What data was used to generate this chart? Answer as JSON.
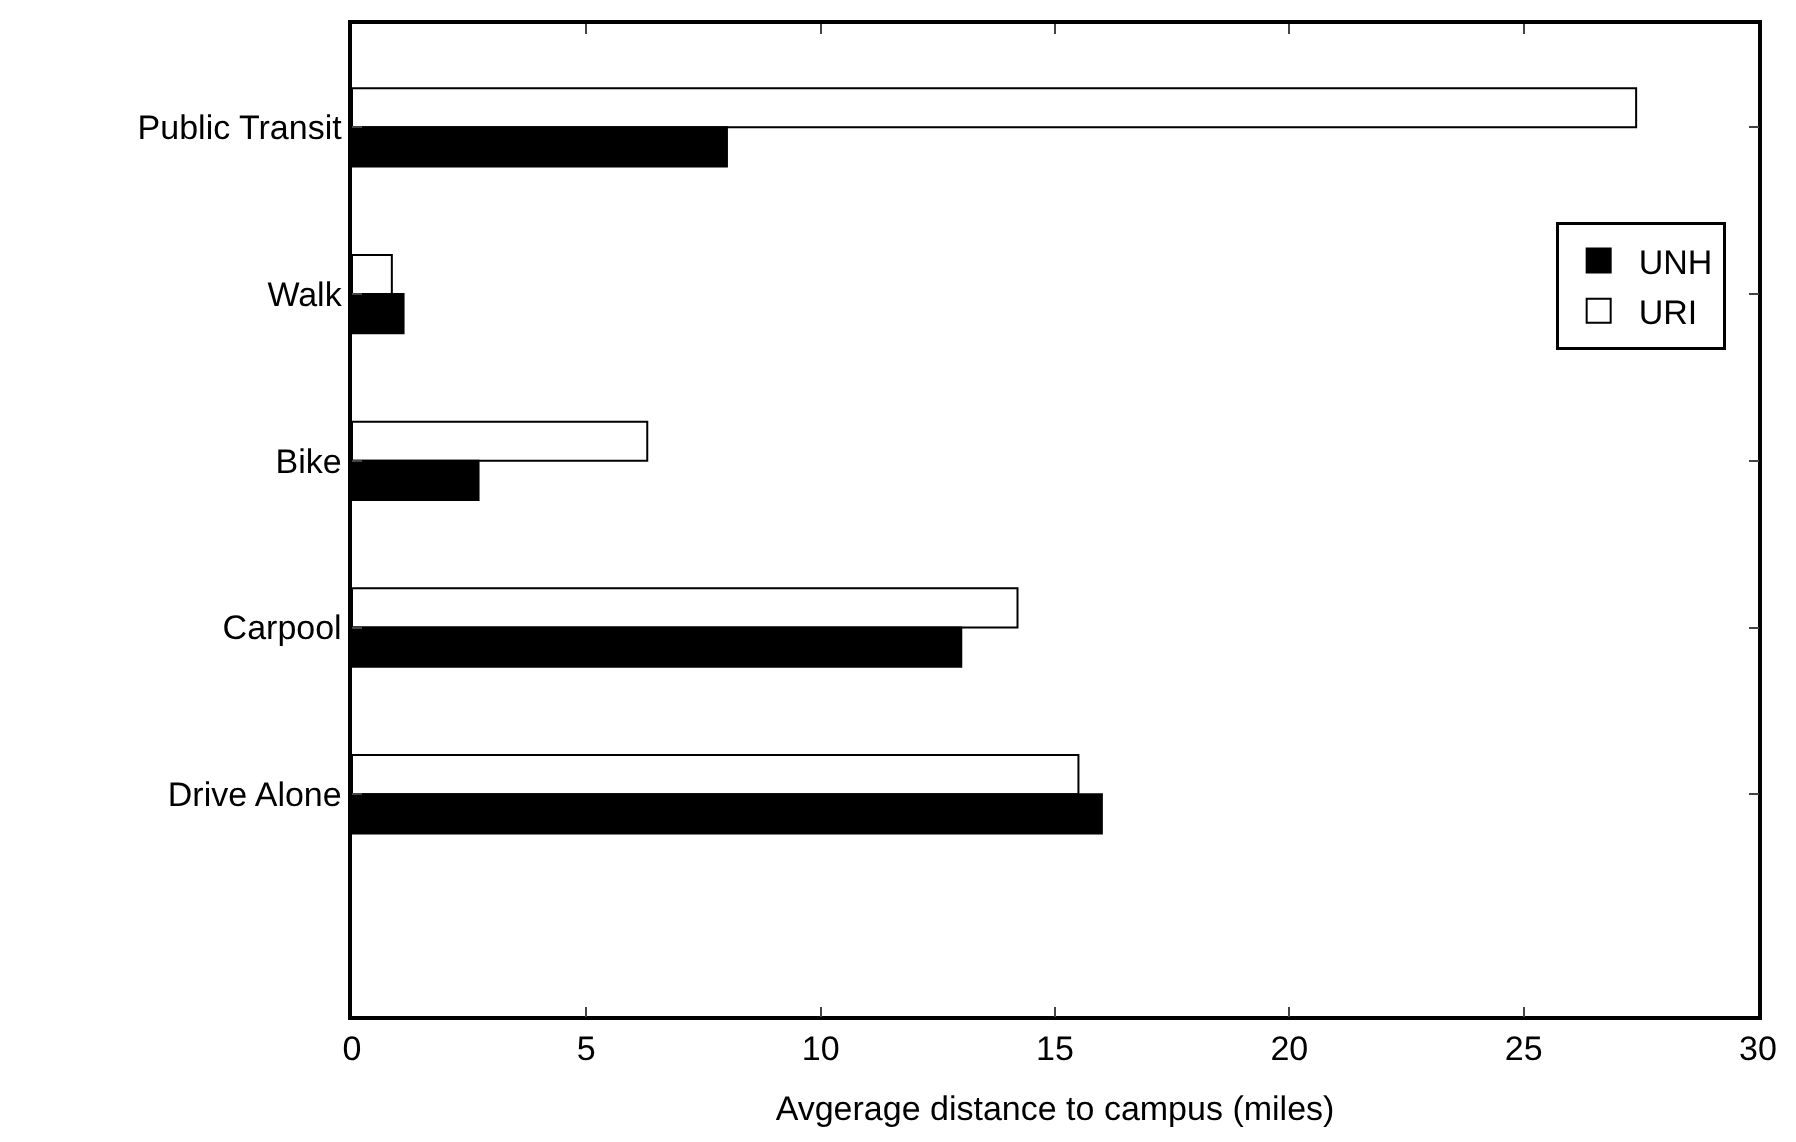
{
  "chart_data": {
    "type": "bar",
    "orientation": "horizontal",
    "xlabel": "Avgerage distance to campus (miles)",
    "categories": [
      "Public Transit",
      "Walk",
      "Bike",
      "Carpool",
      "Drive Alone"
    ],
    "series": [
      {
        "name": "UNH",
        "color": "#000000",
        "values": [
          8.0,
          1.1,
          2.7,
          13.0,
          16.0
        ]
      },
      {
        "name": "URI",
        "color": "#ffffff",
        "values": [
          27.4,
          0.85,
          6.3,
          14.2,
          15.5
        ]
      }
    ],
    "xlim": [
      0,
      30
    ],
    "xticks": [
      0,
      5,
      10,
      15,
      20,
      25,
      30
    ],
    "legend": "right"
  }
}
